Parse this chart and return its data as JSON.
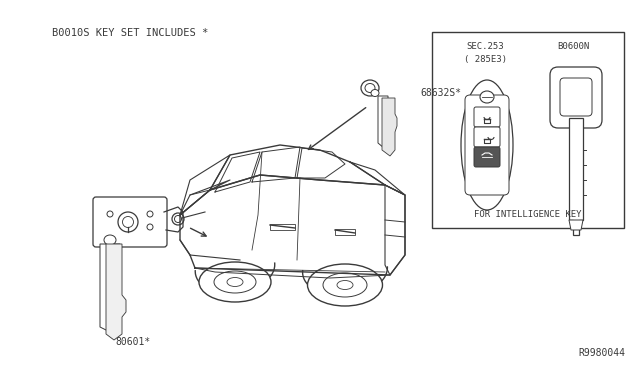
{
  "bg_color": "#ffffff",
  "line_color": "#3a3a3a",
  "text_color": "#3a3a3a",
  "title_text": "B0010S KEY SET INCLUDES *",
  "label_80601": "80601*",
  "label_68632S": "68632S*",
  "label_sec253": "SEC.253",
  "label_285E3": "( 285E3)",
  "label_B0600N": "B0600N",
  "label_intel": "FOR INTELLIGENCE KEY",
  "label_r9980044": "R9980044",
  "fig_w": 6.4,
  "fig_h": 3.72,
  "dpi": 100
}
